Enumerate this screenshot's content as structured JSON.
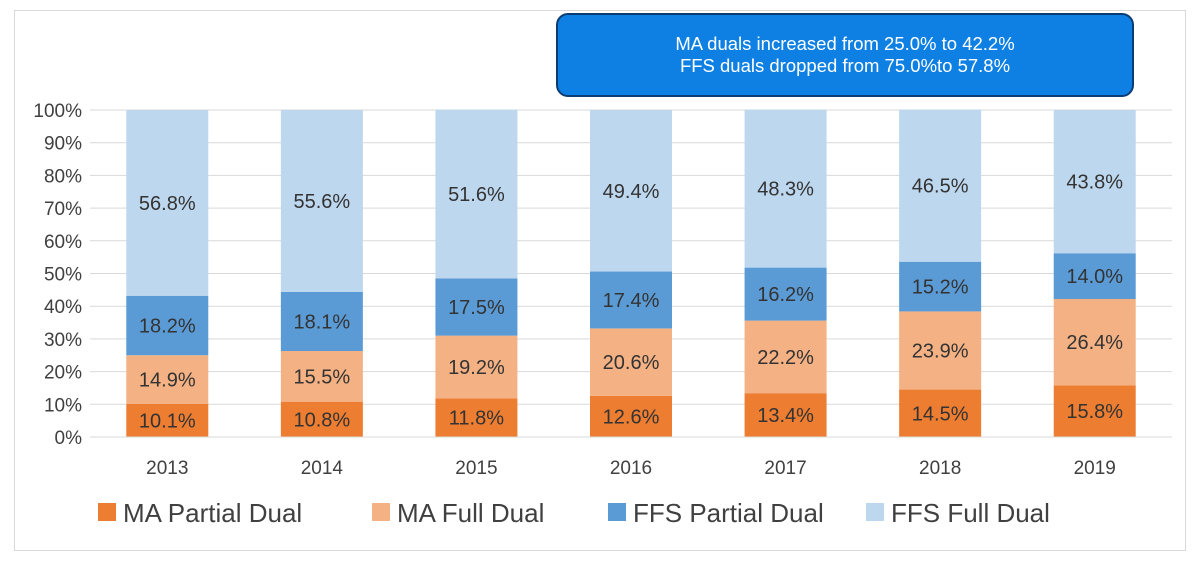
{
  "chart_data": {
    "type": "bar",
    "stacked": true,
    "percent": true,
    "title": "",
    "xlabel": "",
    "ylabel": "",
    "ylim": [
      0,
      100
    ],
    "yticks": [
      "0%",
      "10%",
      "20%",
      "30%",
      "40%",
      "50%",
      "60%",
      "70%",
      "80%",
      "90%",
      "100%"
    ],
    "categories": [
      "2013",
      "2014",
      "2015",
      "2016",
      "2017",
      "2018",
      "2019"
    ],
    "series": [
      {
        "name": "MA Partial Dual",
        "color": "#ed7d31",
        "values": [
          10.1,
          10.8,
          11.8,
          12.6,
          13.4,
          14.5,
          15.8
        ],
        "labels": [
          "10.1%",
          "10.8%",
          "11.8%",
          "12.6%",
          "13.4%",
          "14.5%",
          "15.8%"
        ]
      },
      {
        "name": "MA Full Dual",
        "color": "#f4b183",
        "values": [
          14.9,
          15.5,
          19.2,
          20.6,
          22.2,
          23.9,
          26.4
        ],
        "labels": [
          "14.9%",
          "15.5%",
          "19.2%",
          "20.6%",
          "22.2%",
          "23.9%",
          "26.4%"
        ]
      },
      {
        "name": "FFS Partial Dual",
        "color": "#5b9bd5",
        "values": [
          18.2,
          18.1,
          17.5,
          17.4,
          16.2,
          15.2,
          14.0
        ],
        "labels": [
          "18.2%",
          "18.1%",
          "17.5%",
          "17.4%",
          "16.2%",
          "15.2%",
          "14.0%"
        ]
      },
      {
        "name": "FFS Full Dual",
        "color": "#bdd7ee",
        "values": [
          56.8,
          55.6,
          51.6,
          49.4,
          48.3,
          46.5,
          43.8
        ],
        "labels": [
          "56.8%",
          "55.6%",
          "51.6%",
          "49.4%",
          "48.3%",
          "46.5%",
          "43.8%"
        ]
      }
    ],
    "legend_position": "bottom",
    "grid": true,
    "annotation": {
      "line1": "MA duals increased from 25.0% to 42.2%",
      "line2": "FFS duals dropped from 75.0%to 57.8%",
      "color": "#0e80e3"
    }
  }
}
